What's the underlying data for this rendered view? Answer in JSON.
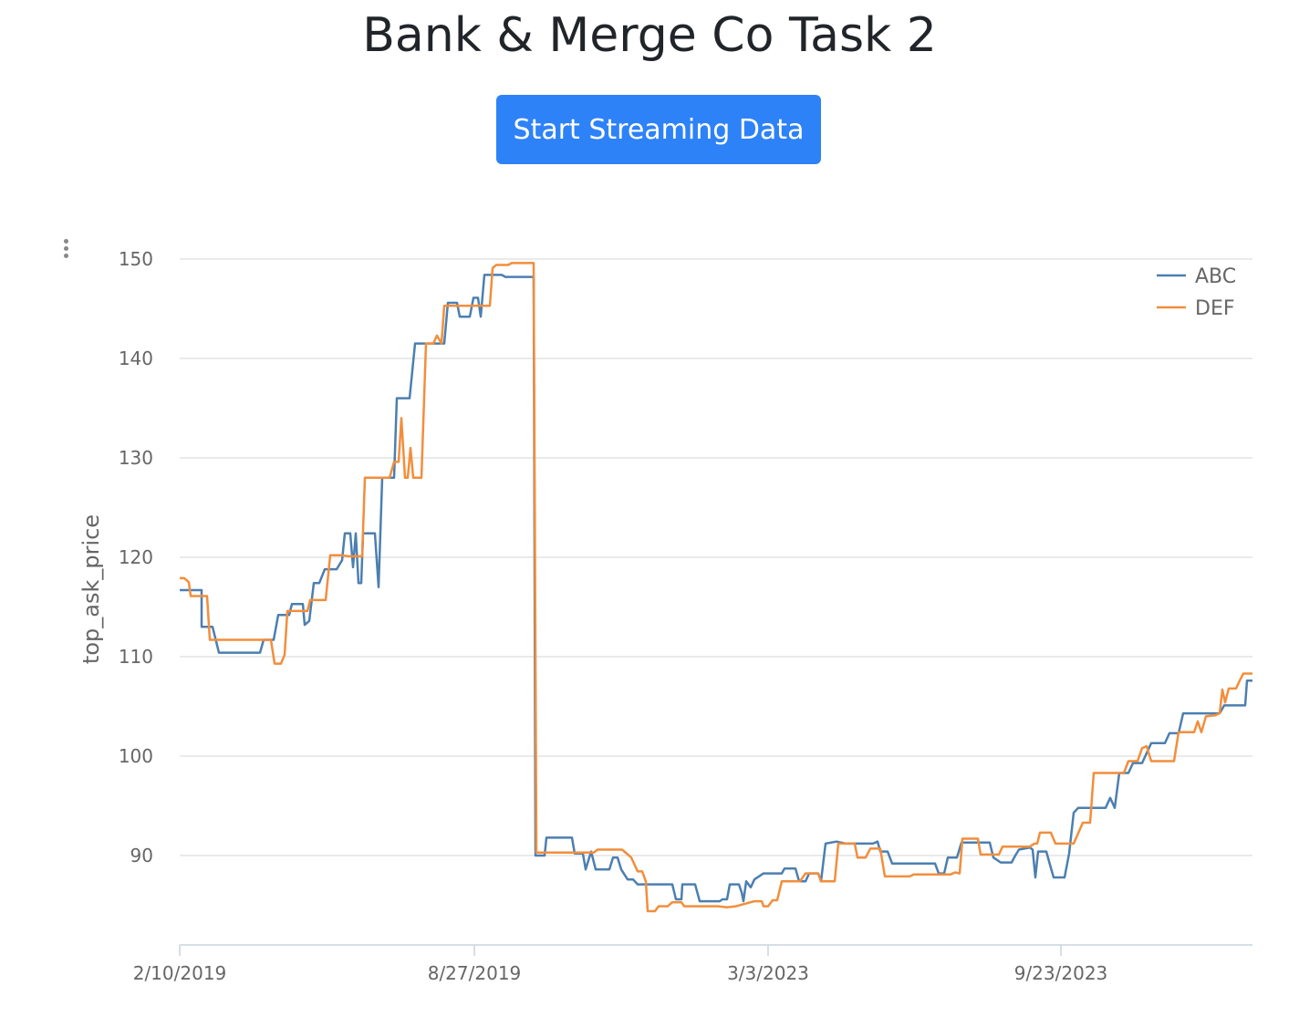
{
  "header": {
    "title": "Bank & Merge Co Task 2",
    "button_label": "Start Streaming Data"
  },
  "config": {
    "icon": "vertical-ellipsis-icon"
  },
  "chart_data": {
    "type": "line",
    "ylabel": "top_ask_price",
    "ylim": [
      81,
      152
    ],
    "yticks": [
      90,
      100,
      110,
      120,
      130,
      140,
      150
    ],
    "x_tick_labels": [
      "2/10/2019",
      "8/27/2019",
      "3/3/2023",
      "9/23/2023"
    ],
    "grid": true,
    "legend_position": "top-right",
    "colors": {
      "ABC": "#4c7fb0",
      "DEF": "#f28e3c"
    },
    "series": [
      {
        "name": "ABC",
        "points": [
          [
            0,
            116.7
          ],
          [
            24,
            116.7
          ],
          [
            24,
            113
          ],
          [
            36,
            113
          ],
          [
            43,
            110.4
          ],
          [
            88,
            110.4
          ],
          [
            92,
            111.7
          ],
          [
            103,
            111.7
          ],
          [
            108,
            114.2
          ],
          [
            120,
            114.2
          ],
          [
            123,
            115.3
          ],
          [
            135,
            115.3
          ],
          [
            137,
            113.2
          ],
          [
            142,
            113.6
          ],
          [
            147,
            117.4
          ],
          [
            153,
            117.4
          ],
          [
            159,
            118.8
          ],
          [
            172,
            118.8
          ],
          [
            178,
            119.7
          ],
          [
            181,
            122.4
          ],
          [
            187,
            122.4
          ],
          [
            190,
            119
          ],
          [
            193,
            122.4
          ],
          [
            196,
            117.4
          ],
          [
            199,
            117.4
          ],
          [
            201,
            122.4
          ],
          [
            214,
            122.4
          ],
          [
            218,
            117
          ],
          [
            222,
            128
          ],
          [
            235,
            128
          ],
          [
            238,
            136
          ],
          [
            246,
            136
          ],
          [
            252,
            136
          ],
          [
            258,
            141.5
          ],
          [
            290,
            141.5
          ],
          [
            294,
            145.6
          ],
          [
            304,
            145.6
          ],
          [
            307,
            144.2
          ],
          [
            318,
            144.2
          ],
          [
            322,
            146.1
          ],
          [
            327,
            146.1
          ],
          [
            330,
            144.2
          ],
          [
            334,
            148.4
          ],
          [
            353,
            148.4
          ],
          [
            357,
            148.2
          ],
          [
            388,
            148.2
          ],
          [
            390,
            90
          ],
          [
            400,
            90
          ],
          [
            402,
            91.8
          ],
          [
            430,
            91.8
          ],
          [
            433,
            90.2
          ],
          [
            442,
            90.2
          ],
          [
            445,
            88.6
          ],
          [
            451,
            90.4
          ],
          [
            456,
            88.6
          ],
          [
            471,
            88.6
          ],
          [
            475,
            89.8
          ],
          [
            480,
            89.8
          ],
          [
            484,
            88.6
          ],
          [
            491,
            87.6
          ],
          [
            497,
            87.6
          ],
          [
            502,
            87.1
          ],
          [
            540,
            87.1
          ],
          [
            544,
            85.6
          ],
          [
            550,
            85.6
          ],
          [
            551,
            87.1
          ],
          [
            565,
            87.1
          ],
          [
            570,
            85.4
          ],
          [
            592,
            85.4
          ],
          [
            595,
            85.6
          ],
          [
            600,
            85.6
          ],
          [
            603,
            87.1
          ],
          [
            613,
            87.1
          ],
          [
            616,
            86.3
          ],
          [
            618,
            85.4
          ],
          [
            621,
            87.4
          ],
          [
            626,
            86.8
          ],
          [
            630,
            87.6
          ],
          [
            640,
            88.2
          ],
          [
            660,
            88.2
          ],
          [
            663,
            88.7
          ],
          [
            675,
            88.7
          ],
          [
            679,
            87.4
          ],
          [
            686,
            87.4
          ],
          [
            690,
            88.2
          ],
          [
            700,
            88.2
          ],
          [
            703,
            87.4
          ],
          [
            708,
            91.2
          ],
          [
            720,
            91.4
          ],
          [
            730,
            91.2
          ],
          [
            760,
            91.2
          ],
          [
            765,
            91.4
          ],
          [
            768,
            90.4
          ],
          [
            776,
            90.4
          ],
          [
            781,
            89.2
          ],
          [
            805,
            89.2
          ],
          [
            828,
            89.2
          ],
          [
            832,
            88.2
          ],
          [
            838,
            88.2
          ],
          [
            842,
            89.8
          ],
          [
            852,
            89.8
          ],
          [
            857,
            91.3
          ],
          [
            880,
            91.3
          ],
          [
            888,
            91.3
          ],
          [
            892,
            89.8
          ],
          [
            900,
            89.3
          ],
          [
            912,
            89.3
          ],
          [
            916,
            90
          ],
          [
            920,
            90.6
          ],
          [
            932,
            90.8
          ],
          [
            935,
            90.6
          ],
          [
            938,
            87.8
          ],
          [
            941,
            90.4
          ],
          [
            950,
            90.4
          ],
          [
            953,
            89.4
          ],
          [
            958,
            87.8
          ],
          [
            970,
            87.8
          ],
          [
            975,
            90.2
          ],
          [
            980,
            94.3
          ],
          [
            985,
            94.8
          ],
          [
            1015,
            94.8
          ],
          [
            1020,
            95.8
          ],
          [
            1025,
            94.8
          ],
          [
            1030,
            98.3
          ],
          [
            1040,
            98.3
          ],
          [
            1045,
            99.3
          ],
          [
            1055,
            99.3
          ],
          [
            1060,
            100.3
          ],
          [
            1065,
            101.3
          ],
          [
            1080,
            101.3
          ],
          [
            1085,
            102.3
          ],
          [
            1095,
            102.3
          ],
          [
            1100,
            104.3
          ],
          [
            1140,
            104.3
          ],
          [
            1145,
            105.1
          ],
          [
            1168,
            105.1
          ],
          [
            1170,
            107.6
          ],
          [
            1176,
            107.6
          ]
        ]
      },
      {
        "name": "DEF",
        "points": [
          [
            0,
            117.9
          ],
          [
            5,
            117.9
          ],
          [
            10,
            117.5
          ],
          [
            12,
            116.1
          ],
          [
            30,
            116.1
          ],
          [
            33,
            111.7
          ],
          [
            100,
            111.7
          ],
          [
            104,
            109.3
          ],
          [
            111,
            109.3
          ],
          [
            115,
            110.2
          ],
          [
            118,
            114.6
          ],
          [
            140,
            114.6
          ],
          [
            143,
            115.7
          ],
          [
            160,
            115.7
          ],
          [
            165,
            120.2
          ],
          [
            178,
            120.2
          ],
          [
            185,
            120.1
          ],
          [
            200,
            120.1
          ],
          [
            203,
            128
          ],
          [
            230,
            128
          ],
          [
            235,
            129.6
          ],
          [
            240,
            129.6
          ],
          [
            243,
            134
          ],
          [
            247,
            128
          ],
          [
            250,
            128
          ],
          [
            253,
            131
          ],
          [
            256,
            128
          ],
          [
            265,
            128
          ],
          [
            270,
            141.5
          ],
          [
            278,
            141.5
          ],
          [
            282,
            142.3
          ],
          [
            287,
            141.5
          ],
          [
            290,
            145.3
          ],
          [
            340,
            145.3
          ],
          [
            343,
            149.1
          ],
          [
            347,
            149.4
          ],
          [
            360,
            149.4
          ],
          [
            364,
            149.6
          ],
          [
            388,
            149.6
          ],
          [
            391,
            90.3
          ],
          [
            400,
            90.3
          ],
          [
            404,
            90.3
          ],
          [
            454,
            90.3
          ],
          [
            458,
            90.6
          ],
          [
            485,
            90.6
          ],
          [
            495,
            89.8
          ],
          [
            502,
            88.4
          ],
          [
            507,
            88.4
          ],
          [
            511,
            87.4
          ],
          [
            513,
            84.4
          ],
          [
            521,
            84.4
          ],
          [
            525,
            84.9
          ],
          [
            535,
            84.9
          ],
          [
            540,
            85.3
          ],
          [
            550,
            85.3
          ],
          [
            553,
            84.9
          ],
          [
            590,
            84.9
          ],
          [
            600,
            84.8
          ],
          [
            610,
            84.9
          ],
          [
            630,
            85.4
          ],
          [
            638,
            85.4
          ],
          [
            640,
            84.9
          ],
          [
            645,
            84.9
          ],
          [
            650,
            85.5
          ],
          [
            655,
            85.5
          ],
          [
            660,
            87.4
          ],
          [
            680,
            87.4
          ],
          [
            686,
            88.2
          ],
          [
            700,
            88.2
          ],
          [
            703,
            87.4
          ],
          [
            718,
            87.4
          ],
          [
            722,
            91.2
          ],
          [
            740,
            91.2
          ],
          [
            743,
            89.8
          ],
          [
            752,
            89.8
          ],
          [
            757,
            90.7
          ],
          [
            768,
            90.7
          ],
          [
            773,
            87.9
          ],
          [
            800,
            87.9
          ],
          [
            805,
            88.1
          ],
          [
            845,
            88.1
          ],
          [
            850,
            88.3
          ],
          [
            855,
            88.2
          ],
          [
            858,
            91.7
          ],
          [
            875,
            91.7
          ],
          [
            878,
            90.1
          ],
          [
            898,
            90.1
          ],
          [
            902,
            90.9
          ],
          [
            932,
            90.9
          ],
          [
            937,
            91.2
          ],
          [
            940,
            91.2
          ],
          [
            943,
            92.3
          ],
          [
            955,
            92.3
          ],
          [
            960,
            91.2
          ],
          [
            975,
            91.2
          ],
          [
            980,
            91.2
          ],
          [
            990,
            93.3
          ],
          [
            998,
            93.3
          ],
          [
            1002,
            98.3
          ],
          [
            1035,
            98.3
          ],
          [
            1040,
            99.5
          ],
          [
            1050,
            99.5
          ],
          [
            1055,
            100.8
          ],
          [
            1060,
            101
          ],
          [
            1065,
            99.5
          ],
          [
            1090,
            99.5
          ],
          [
            1095,
            102.4
          ],
          [
            1112,
            102.4
          ],
          [
            1116,
            103.5
          ],
          [
            1120,
            102.4
          ],
          [
            1125,
            104
          ],
          [
            1135,
            104.1
          ],
          [
            1140,
            104.3
          ],
          [
            1143,
            106.7
          ],
          [
            1146,
            105.4
          ],
          [
            1150,
            106.8
          ],
          [
            1158,
            106.8
          ],
          [
            1162,
            107.6
          ],
          [
            1166,
            108.3
          ],
          [
            1176,
            108.3
          ]
        ]
      }
    ]
  }
}
